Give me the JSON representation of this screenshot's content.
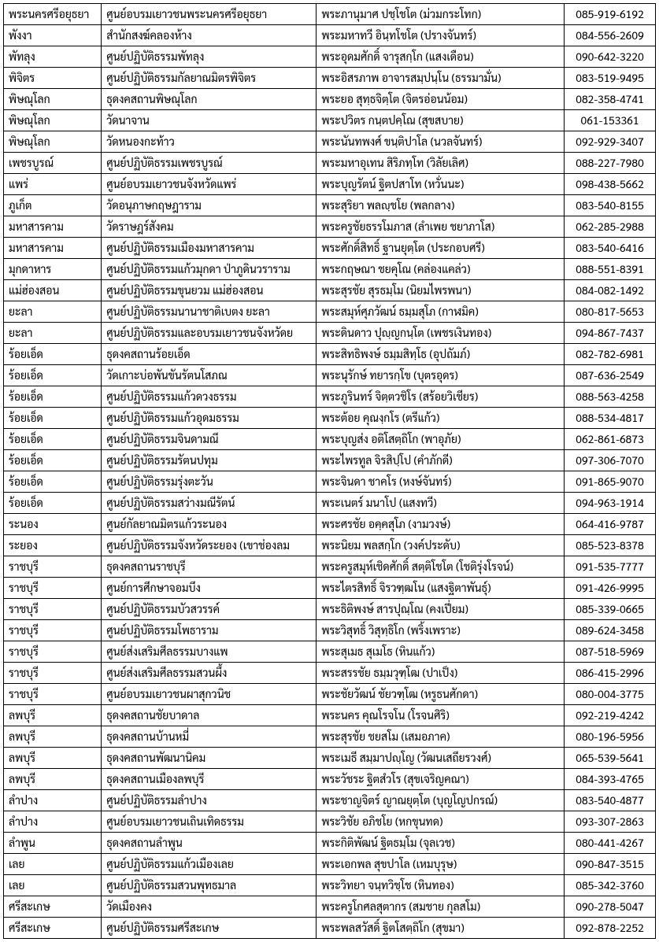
{
  "table": {
    "columns": [
      {
        "key": "province",
        "class": "col-province"
      },
      {
        "key": "center",
        "class": "col-center"
      },
      {
        "key": "name",
        "class": "col-name"
      },
      {
        "key": "phone",
        "class": "col-phone"
      }
    ],
    "rows": [
      [
        "พระนครศรีอยุธยา",
        "ศูนย์อบรมเยาวชนพระนครศรีอยุธยา",
        "พระภานุมาศ ปชฺโชโต (ม่วมกระโทก)",
        "085-919-6192"
      ],
      [
        "พังงา",
        "สำนักสงฆ์คลองห้าง",
        "พระมหาทวี อินฺทโชโต (ปรางจันทร์)",
        "084-556-2609"
      ],
      [
        "พัทลุง",
        "ศูนย์ปฏิบัติธรรมพัทลุง",
        "พระอุดมศักดิ์ จารุสกฺโก (แสงเดือน)",
        "090-642-3220"
      ],
      [
        "พิจิตร",
        "ศูนย์ปฏิบัติธรรมกัลยาณมิตรพิจิตร",
        "พระอิสรภาพ อาจารสมฺปนฺโน (ธรรมามั่น)",
        "083-519-9495"
      ],
      [
        "พิษณุโลก",
        "ธุดงคสถานพิษณุโลก",
        "พระยอ สุทฺธจิตฺโต (จิตรอ่อนน้อม)",
        "082-358-4741"
      ],
      [
        "พิษณุโลก",
        "วัดนาจาน",
        "พระปวิตร กนฺตปคฺโณ (สุขสบาย)",
        "061-153361"
      ],
      [
        "พิษณุโลก",
        "วัดหนองกะท้าว",
        "พระนันทพงศ์ ขนฺติปาโล (นวลจันทร์)",
        "092-929-3407"
      ],
      [
        "เพชรบูรณ์",
        "ศูนย์ปฏิบัติธรรมเพชรบูรณ์",
        "พระมหาอุเทน สิริภทฺโท (วิลัยเลิศ)",
        "088-227-7980"
      ],
      [
        "แพร่",
        "ศูนย์อบรมเยาวชนจังหวัดแพร่",
        "พระบุญรัตน์ ฐิตปสาโท (หวั่นนะ)",
        "098-438-5662"
      ],
      [
        "ภูเก็ต",
        "วัดอนุภาษกฤษฎาราม",
        "พระสุริยา พลญฺชโย (พลกลาง)",
        "083-540-8155"
      ],
      [
        "มหาสารคาม",
        "วัดราษฎร์สังคม",
        "พระครูชัยธรรโมภาส (ลำเพย ชยาภาโส)",
        "062-285-2988"
      ],
      [
        "มหาสารคาม",
        "ศูนย์ปฏิบัติธรรมเมืองมหาสารคาม",
        "พระศักดิ์สิทธิ์ ฐานยุตฺโต (ประกอบศรี)",
        "083-540-6416"
      ],
      [
        "มุกดาหาร",
        "ศูนย์ปฏิบัติธรรมแก้วมุกดา ป่าภูดินวราราม",
        "พระกฤษณา ชยคุโณ (คล่องแคล่ว)",
        "088-551-8391"
      ],
      [
        "แม่ฮ่องสอน",
        "ศูนย์ปฏิบัติธรรมขุนยวม แม่ฮ่องสอน",
        "พระสุรชัย สุรธมฺโม (นิยมไพรพนา)",
        "084-082-1492"
      ],
      [
        "ยะลา",
        "ศูนย์ปฏิบัติธรรมนานาชาติเบตง ยะลา",
        "พระสมุห์ศุภวัฒน์ ธมฺมสุโภ (กาฬมิค)",
        "080-817-5653"
      ],
      [
        "ยะลา",
        "ศูนย์ปฏิบัติธรรมและอบรมเยาวชนจังหวัดย",
        "พระดินดาว ปุญฺญกนฺโต (เพชรเงินทอง)",
        "094-867-7437"
      ],
      [
        "ร้อยเอ็ด",
        "ธุดงคสถานร้อยเอ็ด",
        "พระสิทธิพงษ์ ธมฺมสิทฺโธ (อุปถัมภ์)",
        "082-782-6981"
      ],
      [
        "ร้อยเอ็ด",
        "วัดเกาะบ่อพันขันรัตนโสภณ",
        "พระนุรักษ์ ทยารกฺโข (บุตรอุดร)",
        "087-636-2549"
      ],
      [
        "ร้อยเอ็ด",
        "ศูนย์ปฏิบัติธรรมแก้วดวงธรรม",
        "พระภูรินทร์ จิตฺตวชิโร (สร้อยวิเชียร)",
        "088-563-4258"
      ],
      [
        "ร้อยเอ็ด",
        "ศูนย์ปฏิบัติธรรมแก้วอุดมธรรม",
        "พระต้อย คุณงฺกโร (ตรีแก้ว)",
        "088-534-4817"
      ],
      [
        "ร้อยเอ็ด",
        "ศูนย์ปฏิบัติธรรมจินดามณี",
        "พระบุญส่ง อติโสตฺถิโก (พาอุภัย)",
        "062-861-6873"
      ],
      [
        "ร้อยเอ็ด",
        "ศูนย์ปฏิบัติธรรมรัตนปทุม",
        "พระไพรทูล จิรสิปฺโป (คำภักดี)",
        "097-306-7070"
      ],
      [
        "ร้อยเอ็ด",
        "ศูนย์ปฏิบัติธรรมรุ่งตะวัน",
        "พระจินดา ชาคโร (หงษ์จันทร์)",
        "091-865-9070"
      ],
      [
        "ร้อยเอ็ด",
        "ศูนย์ปฏิบัติธรรมสว่างมณีรัตน์",
        "พระเนตร์ มนาโป (แสงทวี)",
        "094-963-1914"
      ],
      [
        "ระนอง",
        "ศูนย์กัลยาณมิตรแก้วระนอง",
        "พระศรชัย อคฺคสุโภ (งามวงษ์)",
        "064-416-9787"
      ],
      [
        "ระยอง",
        "ศูนย์ปฏิบัติธรรมจังหวัดระยอง (เขาช่องลม",
        "พระนิยม พลสกฺโก (วงค์ประดับ)",
        "085-523-8378"
      ],
      [
        "ราชบุรี",
        "ธุดงคสถานราชบุรี",
        "พระครูสมุห์เชิดศักดิ์ สตฺติโชโต (โชติรุ่งโรจน์)",
        "091-535-7777"
      ],
      [
        "ราชบุรี",
        "ศูนย์การศึกษาจอมบึง",
        "พระไตรสิทธิ์ จิรวฑฺฒโน (แสงฐิตาพันธุ์)",
        "091-426-9995"
      ],
      [
        "ราชบุรี",
        "ศูนย์ปฏิบัติธรรมบัวสวรรค์",
        "พระธิติพงษ์ สารปุณฺโณ (คงเปี่ยม)",
        "085-339-0665"
      ],
      [
        "ราชบุรี",
        "ศูนย์ปฏิบัติธรรมโพธาราม",
        "พระวิสุทธิ์ วิสุทฺธิโก (พริ้งเพราะ)",
        "089-624-3458"
      ],
      [
        "ราชบุรี",
        "ศูนย์ส่งเสริมศีลธรรมบางแพ",
        "พระสุเมธ สุเมโธ (หินแก้ว)",
        "087-518-5969"
      ],
      [
        "ราชบุรี",
        "ศูนย์ส่งเสริมศีลธรรมสวนผึ้ง",
        "พระสรรชัย ธมฺมวุฑฺโฒ (ปาเป็ง)",
        "086-415-2996"
      ],
      [
        "ราชบุรี",
        "ศูนย์อบรมเยาวชนผาสุกวนิช",
        "พระชัยวัฒน์ ชัยวฑฺโฒ (หรูธนศักดา)",
        "080-004-3775"
      ],
      [
        "ลพบุรี",
        "ธุดงคสถานชัยบาดาล",
        "พระนคร คุณโรจโน (โรจนศิริ)",
        "092-219-4242"
      ],
      [
        "ลพบุรี",
        "ธุดงคสถานบ้านหมี่",
        "พระสุรชัย ชยสโม (เสมอภาค)",
        "080-196-5956"
      ],
      [
        "ลพบุรี",
        "ธุดงคสถานพัฒนานิคม",
        "พระเมธี สมฺมาปญฺโญ (วัฒนเสถียรวงศ์)",
        "065-539-5641"
      ],
      [
        "ลพบุรี",
        "ธุดงคสถานเมืองลพบุรี",
        "พระวัชระ ฐิตสํวโร (สุขเจริญคณา)",
        "084-393-4765"
      ],
      [
        "ลำปาง",
        "ศูนย์ปฏิบัติธรรมลำปาง",
        "พระชาญจิตร์ ญาณยุตฺโต (บุญโญปกรณ์)",
        "083-540-4877"
      ],
      [
        "ลำปาง",
        "ศูนย์อบรมเยาวชนเถินเทิดธรรม",
        "พระวิชัย อภิชโย (หกขุนทด)",
        "093-307-2863"
      ],
      [
        "ลำพูน",
        "ธุดงคสถานลำพูน",
        "พระกิติพัฒน์ ฐิตธมฺโม (จุลเวช)",
        "080-441-4267"
      ],
      [
        "เลย",
        "ศูนย์ปฏิบัติธรรมแก้วเมืองเลย",
        "พระเอกพล สุขปาโล (เหมบุรุษ)",
        "090-847-3515"
      ],
      [
        "เลย",
        "ศูนย์ปฏิบัติธรรมสวนพุทธมาล",
        "พระวิทยา จนฺทวิชฺโช (หินทอง)",
        "085-342-3760"
      ],
      [
        "ศรีสะเกษ",
        "วัดเมืองคง",
        "พระครูโกศลสุตากร (สมชาย กุลสโม)",
        "090-278-5047"
      ],
      [
        "ศรีสะเกษ",
        "ศูนย์ปฏิบัติธรรมศรีสะเกษ",
        "พระพลสวัสดิ์ ฐิตโสตฺถิโก (สุขมา)",
        "092-878-2252"
      ]
    ]
  }
}
